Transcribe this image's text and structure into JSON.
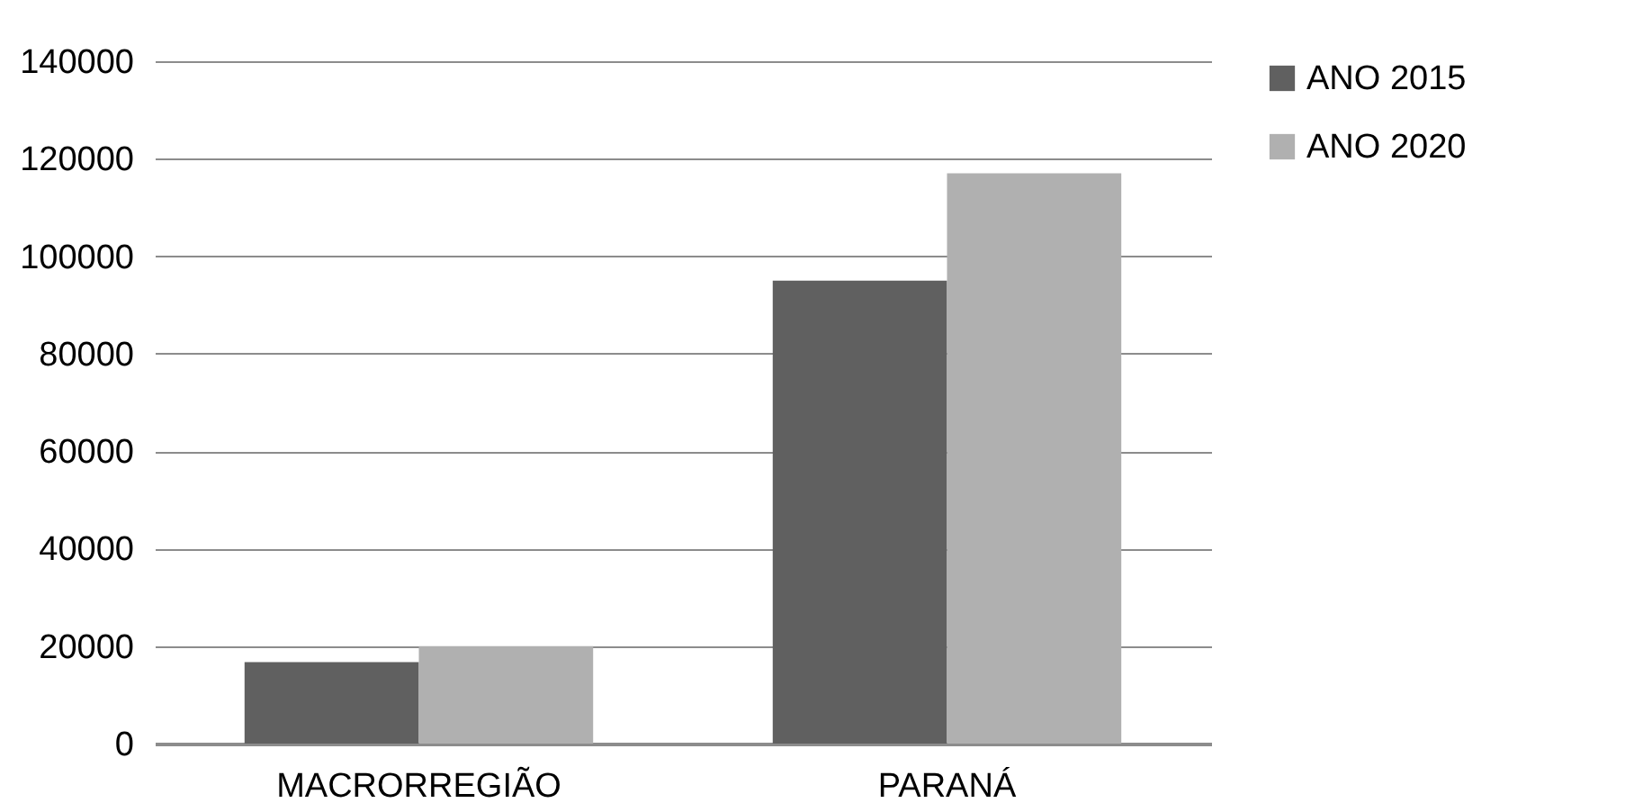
{
  "chart_data": {
    "type": "bar",
    "categories": [
      "MACRORREGIÃO",
      "PARANÁ"
    ],
    "series": [
      {
        "name": "ANO 2015",
        "color": "#606060",
        "values": [
          16700,
          95000
        ]
      },
      {
        "name": "ANO 2020",
        "color": "#b0b0b0",
        "values": [
          20000,
          117000
        ]
      }
    ],
    "ylim": [
      0,
      140000
    ],
    "yticks": [
      0,
      20000,
      40000,
      60000,
      80000,
      100000,
      120000,
      140000
    ],
    "grid": "y",
    "legend": "right"
  }
}
